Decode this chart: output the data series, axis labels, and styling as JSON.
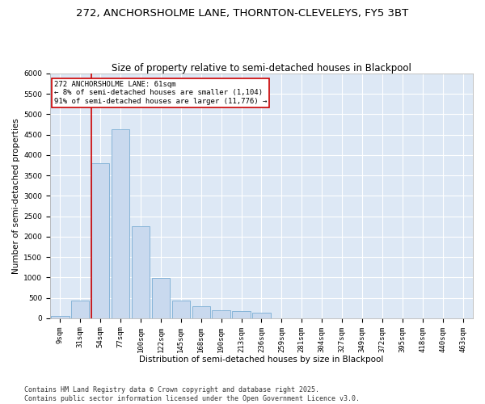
{
  "title1": "272, ANCHORSHOLME LANE, THORNTON-CLEVELEYS, FY5 3BT",
  "title2": "Size of property relative to semi-detached houses in Blackpool",
  "xlabel": "Distribution of semi-detached houses by size in Blackpool",
  "ylabel": "Number of semi-detached properties",
  "bar_color": "#c9d9ee",
  "bar_edge_color": "#7aadd4",
  "annotation_box_color": "#cc0000",
  "bg_color": "#dde8f5",
  "grid_color": "#ffffff",
  "categories": [
    "9sqm",
    "31sqm",
    "54sqm",
    "77sqm",
    "100sqm",
    "122sqm",
    "145sqm",
    "168sqm",
    "190sqm",
    "213sqm",
    "236sqm",
    "259sqm",
    "281sqm",
    "304sqm",
    "327sqm",
    "349sqm",
    "372sqm",
    "395sqm",
    "418sqm",
    "440sqm",
    "463sqm"
  ],
  "values": [
    50,
    430,
    3800,
    4630,
    2250,
    990,
    430,
    300,
    195,
    175,
    130,
    0,
    0,
    0,
    0,
    0,
    0,
    0,
    0,
    0,
    0
  ],
  "vline_x_idx": 2,
  "annotation_text": "272 ANCHORSHOLME LANE: 61sqm\n← 8% of semi-detached houses are smaller (1,104)\n91% of semi-detached houses are larger (11,776) →",
  "ylim": [
    0,
    6000
  ],
  "yticks": [
    0,
    500,
    1000,
    1500,
    2000,
    2500,
    3000,
    3500,
    4000,
    4500,
    5000,
    5500,
    6000
  ],
  "footer": "Contains HM Land Registry data © Crown copyright and database right 2025.\nContains public sector information licensed under the Open Government Licence v3.0.",
  "title_fontsize": 9.5,
  "subtitle_fontsize": 8.5,
  "axis_label_fontsize": 7.5,
  "tick_fontsize": 6.5,
  "annotation_fontsize": 6.5,
  "footer_fontsize": 6
}
